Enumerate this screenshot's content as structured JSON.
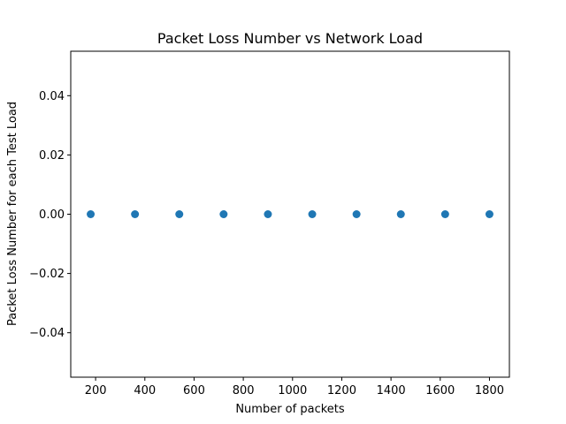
{
  "chart_data": {
    "type": "scatter",
    "title": "Packet Loss Number vs Network Load",
    "xlabel": "Number of packets",
    "ylabel": "Packet Loss Number for each Test Load",
    "xlim": [
      99,
      1881
    ],
    "ylim": [
      -0.055,
      0.055
    ],
    "xticks": [
      200,
      400,
      600,
      800,
      1000,
      1200,
      1400,
      1600,
      1800
    ],
    "xtick_labels": [
      "200",
      "400",
      "600",
      "800",
      "1000",
      "1200",
      "1400",
      "1600",
      "1800"
    ],
    "yticks": [
      -0.04,
      -0.02,
      0.0,
      0.02,
      0.04
    ],
    "ytick_labels": [
      "−0.04",
      "−0.02",
      "0.00",
      "0.02",
      "0.04"
    ],
    "grid": false,
    "marker_color": "#1f77b4",
    "series": [
      {
        "x": [
          180,
          360,
          540,
          720,
          900,
          1080,
          1260,
          1440,
          1620,
          1800
        ],
        "y": [
          0,
          0,
          0,
          0,
          0,
          0,
          0,
          0,
          0,
          0
        ]
      }
    ]
  }
}
